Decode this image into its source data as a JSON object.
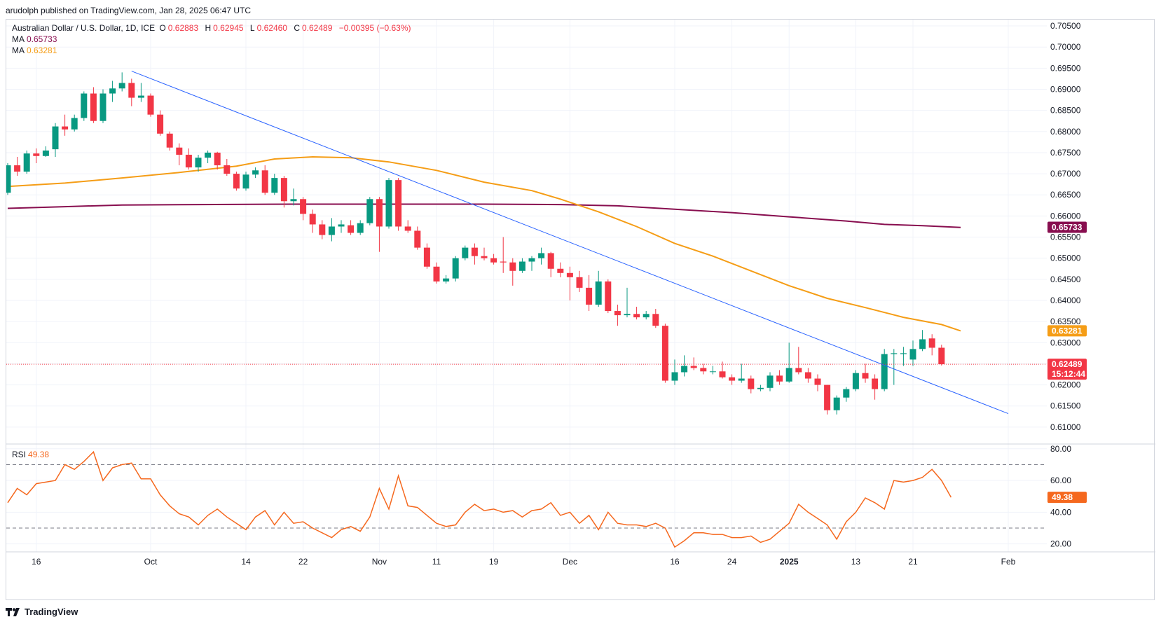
{
  "header": {
    "published": "arudolph published on TradingView.com, Jan 28, 2025 06:47 UTC"
  },
  "legend": {
    "symbol": "Australian Dollar / U.S. Dollar, 1D, ICE",
    "o_label": "O",
    "o_value": "0.62883",
    "h_label": "H",
    "h_value": "0.62945",
    "l_label": "L",
    "l_value": "0.62460",
    "c_label": "C",
    "c_value": "0.62489",
    "change": "−0.00395 (−0.63%)",
    "ma1_label": "MA",
    "ma1_value": "0.65733",
    "ma2_label": "MA",
    "ma2_value": "0.63281",
    "rsi_label": "RSI",
    "rsi_value": "49.38"
  },
  "footer": {
    "brand": "TradingView"
  },
  "colors": {
    "up": "#089981",
    "down": "#f23645",
    "ma_slow": "#880e4f",
    "ma_fast": "#f59d16",
    "trendline": "#2962ff",
    "rsi": "#f5681e"
  },
  "chart_data": [
    {
      "type": "candlestick",
      "title": "Australian Dollar / U.S. Dollar, 1D, ICE",
      "ylim": [
        0.606,
        0.7065
      ],
      "y_ticks": [
        "0.61000",
        "0.61500",
        "0.62000",
        "0.62500",
        "0.63000",
        "0.63500",
        "0.64000",
        "0.64500",
        "0.65000",
        "0.65500",
        "0.66000",
        "0.66500",
        "0.67000",
        "0.67500",
        "0.68000",
        "0.68500",
        "0.69000",
        "0.69500",
        "0.70000",
        "0.70500"
      ],
      "x_ticks": [
        {
          "label": "16",
          "i": 3
        },
        {
          "label": "Oct",
          "i": 15
        },
        {
          "label": "14",
          "i": 25
        },
        {
          "label": "22",
          "i": 31
        },
        {
          "label": "Nov",
          "i": 39
        },
        {
          "label": "11",
          "i": 45
        },
        {
          "label": "19",
          "i": 51
        },
        {
          "label": "Dec",
          "i": 59
        },
        {
          "label": "16",
          "i": 70
        },
        {
          "label": "24",
          "i": 76
        },
        {
          "label": "2025",
          "i": 82
        },
        {
          "label": "13",
          "i": 89
        },
        {
          "label": "21",
          "i": 95
        },
        {
          "label": "Feb",
          "i": 105
        }
      ],
      "candles": [
        [
          0.6655,
          0.6725,
          0.665,
          0.672
        ],
        [
          0.672,
          0.674,
          0.6695,
          0.6705
        ],
        [
          0.6705,
          0.6755,
          0.67,
          0.6748
        ],
        [
          0.6748,
          0.676,
          0.6725,
          0.6742
        ],
        [
          0.6742,
          0.6765,
          0.674,
          0.6755
        ],
        [
          0.6758,
          0.682,
          0.674,
          0.6812
        ],
        [
          0.6812,
          0.684,
          0.679,
          0.6805
        ],
        [
          0.6805,
          0.684,
          0.68,
          0.6832
        ],
        [
          0.6832,
          0.6895,
          0.6825,
          0.689
        ],
        [
          0.689,
          0.6905,
          0.682,
          0.6825
        ],
        [
          0.6825,
          0.69,
          0.682,
          0.689
        ],
        [
          0.689,
          0.692,
          0.687,
          0.6902
        ],
        [
          0.6902,
          0.694,
          0.6895,
          0.6915
        ],
        [
          0.6915,
          0.6925,
          0.686,
          0.688
        ],
        [
          0.688,
          0.6915,
          0.687,
          0.6885
        ],
        [
          0.6885,
          0.689,
          0.6835,
          0.684
        ],
        [
          0.684,
          0.685,
          0.679,
          0.6795
        ],
        [
          0.6795,
          0.68,
          0.6755,
          0.6762
        ],
        [
          0.6762,
          0.6772,
          0.672,
          0.6745
        ],
        [
          0.6745,
          0.676,
          0.671,
          0.6715
        ],
        [
          0.6715,
          0.6745,
          0.6705,
          0.6738
        ],
        [
          0.6738,
          0.6755,
          0.6725,
          0.675
        ],
        [
          0.675,
          0.6752,
          0.671,
          0.672
        ],
        [
          0.672,
          0.6735,
          0.6695,
          0.67
        ],
        [
          0.67,
          0.6705,
          0.666,
          0.6665
        ],
        [
          0.6665,
          0.6705,
          0.666,
          0.6698
        ],
        [
          0.6698,
          0.6715,
          0.669,
          0.6708
        ],
        [
          0.6708,
          0.672,
          0.665,
          0.6655
        ],
        [
          0.6655,
          0.67,
          0.665,
          0.669
        ],
        [
          0.669,
          0.6695,
          0.662,
          0.6635
        ],
        [
          0.6635,
          0.6665,
          0.6625,
          0.664
        ],
        [
          0.664,
          0.6645,
          0.659,
          0.6605
        ],
        [
          0.6605,
          0.6615,
          0.656,
          0.658
        ],
        [
          0.658,
          0.659,
          0.6545,
          0.6555
        ],
        [
          0.6555,
          0.6595,
          0.654,
          0.6575
        ],
        [
          0.6575,
          0.659,
          0.656,
          0.658
        ],
        [
          0.6578,
          0.659,
          0.6555,
          0.656
        ],
        [
          0.656,
          0.659,
          0.6555,
          0.6583
        ],
        [
          0.6583,
          0.6645,
          0.6578,
          0.664
        ],
        [
          0.664,
          0.6645,
          0.6515,
          0.6575
        ],
        [
          0.6575,
          0.669,
          0.657,
          0.6685
        ],
        [
          0.6685,
          0.669,
          0.6565,
          0.6575
        ],
        [
          0.6575,
          0.659,
          0.656,
          0.6565
        ],
        [
          0.6565,
          0.6575,
          0.652,
          0.6525
        ],
        [
          0.6525,
          0.6535,
          0.6475,
          0.648
        ],
        [
          0.648,
          0.649,
          0.644,
          0.6445
        ],
        [
          0.6445,
          0.646,
          0.644,
          0.6452
        ],
        [
          0.6452,
          0.6505,
          0.6445,
          0.65
        ],
        [
          0.65,
          0.653,
          0.6495,
          0.6525
        ],
        [
          0.6525,
          0.6535,
          0.6485,
          0.6505
        ],
        [
          0.6505,
          0.6525,
          0.6495,
          0.65
        ],
        [
          0.65,
          0.651,
          0.6485,
          0.649
        ],
        [
          0.6492,
          0.655,
          0.6465,
          0.649
        ],
        [
          0.649,
          0.65,
          0.6435,
          0.647
        ],
        [
          0.647,
          0.65,
          0.6465,
          0.6492
        ],
        [
          0.6492,
          0.6505,
          0.647,
          0.65
        ],
        [
          0.65,
          0.6525,
          0.6485,
          0.6512
        ],
        [
          0.6512,
          0.6515,
          0.6455,
          0.6475
        ],
        [
          0.6475,
          0.649,
          0.6455,
          0.6465
        ],
        [
          0.6465,
          0.648,
          0.64,
          0.6455
        ],
        [
          0.6455,
          0.647,
          0.642,
          0.643
        ],
        [
          0.643,
          0.646,
          0.6375,
          0.639
        ],
        [
          0.639,
          0.647,
          0.6385,
          0.6445
        ],
        [
          0.6445,
          0.645,
          0.637,
          0.6375
        ],
        [
          0.6375,
          0.639,
          0.634,
          0.6365
        ],
        [
          0.6365,
          0.643,
          0.636,
          0.6368
        ],
        [
          0.6368,
          0.6385,
          0.6355,
          0.636
        ],
        [
          0.636,
          0.6375,
          0.6355,
          0.6368
        ],
        [
          0.6368,
          0.638,
          0.6335,
          0.634
        ],
        [
          0.634,
          0.6345,
          0.6205,
          0.621
        ],
        [
          0.621,
          0.626,
          0.62,
          0.623
        ],
        [
          0.623,
          0.627,
          0.622,
          0.6245
        ],
        [
          0.6245,
          0.6265,
          0.6235,
          0.624
        ],
        [
          0.624,
          0.625,
          0.6225,
          0.6232
        ],
        [
          0.6232,
          0.6245,
          0.6225,
          0.6232
        ],
        [
          0.6232,
          0.6255,
          0.6215,
          0.6218
        ],
        [
          0.6218,
          0.6225,
          0.62,
          0.621
        ],
        [
          0.621,
          0.625,
          0.6205,
          0.6215
        ],
        [
          0.6215,
          0.6222,
          0.618,
          0.619
        ],
        [
          0.619,
          0.62,
          0.6185,
          0.6193
        ],
        [
          0.6193,
          0.623,
          0.6185,
          0.6222
        ],
        [
          0.6222,
          0.6235,
          0.62,
          0.6208
        ],
        [
          0.6208,
          0.63,
          0.6205,
          0.624
        ],
        [
          0.624,
          0.629,
          0.6225,
          0.623
        ],
        [
          0.623,
          0.624,
          0.6205,
          0.6215
        ],
        [
          0.6215,
          0.6225,
          0.6185,
          0.62
        ],
        [
          0.62,
          0.62,
          0.613,
          0.614
        ],
        [
          0.614,
          0.6175,
          0.613,
          0.617
        ],
        [
          0.617,
          0.6195,
          0.616,
          0.619
        ],
        [
          0.619,
          0.6235,
          0.6185,
          0.6228
        ],
        [
          0.6228,
          0.625,
          0.6205,
          0.6215
        ],
        [
          0.6215,
          0.6225,
          0.6165,
          0.619
        ],
        [
          0.619,
          0.6285,
          0.6185,
          0.6273
        ],
        [
          0.6273,
          0.6285,
          0.62,
          0.6275
        ],
        [
          0.6273,
          0.629,
          0.6245,
          0.6275
        ],
        [
          0.626,
          0.6305,
          0.6245,
          0.6285
        ],
        [
          0.6285,
          0.633,
          0.628,
          0.6308
        ],
        [
          0.631,
          0.632,
          0.627,
          0.6288
        ],
        [
          0.6288,
          0.6295,
          0.6246,
          0.6249
        ]
      ],
      "ma_fast": [
        [
          0,
          0.667
        ],
        [
          6,
          0.6678
        ],
        [
          12,
          0.669
        ],
        [
          18,
          0.6703
        ],
        [
          24,
          0.6718
        ],
        [
          28,
          0.6735
        ],
        [
          32,
          0.674
        ],
        [
          36,
          0.6738
        ],
        [
          40,
          0.6728
        ],
        [
          45,
          0.6708
        ],
        [
          50,
          0.668
        ],
        [
          55,
          0.666
        ],
        [
          58,
          0.664
        ],
        [
          62,
          0.661
        ],
        [
          66,
          0.6575
        ],
        [
          70,
          0.6535
        ],
        [
          74,
          0.6505
        ],
        [
          78,
          0.647
        ],
        [
          82,
          0.6435
        ],
        [
          86,
          0.6405
        ],
        [
          90,
          0.6383
        ],
        [
          94,
          0.636
        ],
        [
          98,
          0.6343
        ],
        [
          100,
          0.6328
        ]
      ],
      "ma_slow": [
        [
          0,
          0.6618
        ],
        [
          6,
          0.6622
        ],
        [
          12,
          0.6626
        ],
        [
          20,
          0.6627
        ],
        [
          30,
          0.6628
        ],
        [
          40,
          0.6628
        ],
        [
          50,
          0.6628
        ],
        [
          58,
          0.6627
        ],
        [
          64,
          0.6624
        ],
        [
          70,
          0.6616
        ],
        [
          76,
          0.6608
        ],
        [
          82,
          0.6598
        ],
        [
          88,
          0.6588
        ],
        [
          92,
          0.658
        ],
        [
          96,
          0.6577
        ],
        [
          100,
          0.6573
        ]
      ],
      "trendline": [
        [
          13,
          0.6943
        ],
        [
          105,
          0.6132
        ]
      ],
      "last_price": {
        "value": 0.62489,
        "label": "0.62489",
        "countdown": "15:12:44"
      },
      "ma_fast_last": {
        "value": 0.63281,
        "label": "0.63281"
      },
      "ma_slow_last": {
        "value": 0.65733,
        "label": "0.65733"
      }
    },
    {
      "type": "line",
      "title": "RSI",
      "ylim": [
        15,
        83
      ],
      "y_ticks": [
        "20.00",
        "40.00",
        "60.00",
        "80.00"
      ],
      "levels": [
        30,
        70
      ],
      "values": [
        [
          0,
          46
        ],
        [
          1,
          55
        ],
        [
          2,
          51
        ],
        [
          3,
          58
        ],
        [
          4,
          59
        ],
        [
          5,
          60
        ],
        [
          6,
          70
        ],
        [
          7,
          67
        ],
        [
          8,
          72
        ],
        [
          9,
          78
        ],
        [
          10,
          60
        ],
        [
          11,
          68
        ],
        [
          12,
          70
        ],
        [
          13,
          71
        ],
        [
          14,
          61
        ],
        [
          15,
          61
        ],
        [
          16,
          51
        ],
        [
          17,
          44
        ],
        [
          18,
          39
        ],
        [
          19,
          37
        ],
        [
          20,
          32
        ],
        [
          21,
          38
        ],
        [
          22,
          42
        ],
        [
          23,
          37
        ],
        [
          24,
          33
        ],
        [
          25,
          29
        ],
        [
          26,
          37
        ],
        [
          27,
          41
        ],
        [
          28,
          32
        ],
        [
          29,
          40
        ],
        [
          30,
          33
        ],
        [
          31,
          34
        ],
        [
          32,
          30
        ],
        [
          33,
          27
        ],
        [
          34,
          24
        ],
        [
          35,
          29
        ],
        [
          36,
          31
        ],
        [
          37,
          28
        ],
        [
          38,
          37
        ],
        [
          39,
          55
        ],
        [
          40,
          42
        ],
        [
          41,
          63
        ],
        [
          42,
          44
        ],
        [
          43,
          43
        ],
        [
          44,
          38
        ],
        [
          45,
          33
        ],
        [
          46,
          31
        ],
        [
          47,
          32
        ],
        [
          48,
          40
        ],
        [
          49,
          45
        ],
        [
          50,
          41
        ],
        [
          51,
          42
        ],
        [
          52,
          40
        ],
        [
          53,
          41
        ],
        [
          54,
          37
        ],
        [
          55,
          41
        ],
        [
          56,
          42
        ],
        [
          57,
          46
        ],
        [
          58,
          38
        ],
        [
          59,
          40
        ],
        [
          60,
          33
        ],
        [
          61,
          38
        ],
        [
          62,
          29
        ],
        [
          63,
          40
        ],
        [
          64,
          33
        ],
        [
          65,
          32
        ],
        [
          66,
          32
        ],
        [
          67,
          31
        ],
        [
          68,
          33
        ],
        [
          69,
          30
        ],
        [
          70,
          18
        ],
        [
          71,
          22
        ],
        [
          72,
          27
        ],
        [
          73,
          27
        ],
        [
          74,
          26
        ],
        [
          75,
          26
        ],
        [
          76,
          24
        ],
        [
          77,
          24
        ],
        [
          78,
          25
        ],
        [
          79,
          21
        ],
        [
          80,
          23
        ],
        [
          81,
          28
        ],
        [
          82,
          33
        ],
        [
          83,
          45
        ],
        [
          84,
          40
        ],
        [
          85,
          36
        ],
        [
          86,
          32
        ],
        [
          87,
          23
        ],
        [
          88,
          34
        ],
        [
          89,
          40
        ],
        [
          90,
          49
        ],
        [
          91,
          46
        ],
        [
          92,
          42
        ],
        [
          93,
          60
        ],
        [
          94,
          59
        ],
        [
          95,
          60
        ],
        [
          96,
          62
        ],
        [
          97,
          67
        ],
        [
          98,
          60
        ],
        [
          99,
          49.38
        ]
      ],
      "last": {
        "value": 49.38,
        "label": "49.38"
      }
    }
  ]
}
